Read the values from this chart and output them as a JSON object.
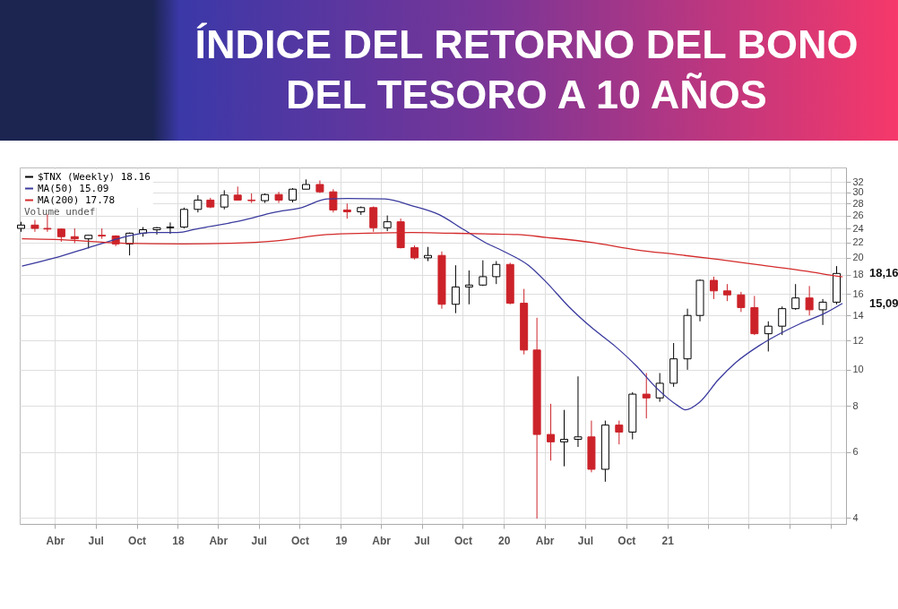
{
  "chart_data": {
    "type": "candlestick",
    "title": "ÍNDICE DEL RETORNO DEL BONO DEL TESORO A 10 AÑOS",
    "xlim": [
      "2017-01-12",
      "2022-02-05"
    ],
    "xticks": [
      {
        "value": "2017-04-01",
        "label": "Abr"
      },
      {
        "value": "2017-07-01",
        "label": "Jul"
      },
      {
        "value": "2017-10-01",
        "label": "Oct"
      },
      {
        "value": "2018-01-01",
        "label": "18"
      },
      {
        "value": "2018-04-01",
        "label": "Abr"
      },
      {
        "value": "2018-07-01",
        "label": "Jul"
      },
      {
        "value": "2018-10-01",
        "label": "Oct"
      },
      {
        "value": "2019-01-01",
        "label": "19"
      },
      {
        "value": "2019-04-01",
        "label": "Abr"
      },
      {
        "value": "2019-07-01",
        "label": "Jul"
      },
      {
        "value": "2019-10-01",
        "label": "Oct"
      },
      {
        "value": "2020-01-01",
        "label": "20"
      },
      {
        "value": "2020-04-01",
        "label": "Abr"
      },
      {
        "value": "2020-07-01",
        "label": "Jul"
      },
      {
        "value": "2020-10-01",
        "label": "Oct"
      },
      {
        "value": "2021-01-01",
        "label": "21"
      },
      {
        "value": "2021-04-01",
        "label": null
      },
      {
        "value": "2021-07-01",
        "label": null
      },
      {
        "value": "2021-10-01",
        "label": null
      },
      {
        "value": "2022-01-01",
        "label": null
      }
    ],
    "ylim": [
      3.85,
      35
    ],
    "yticks": [
      4,
      6,
      8,
      10,
      12,
      14,
      16,
      18,
      20,
      22,
      24,
      26,
      28,
      30,
      32
    ],
    "log": true,
    "grid": true,
    "legend": "top left",
    "series": [
      {
        "name": "$TNX (Weekly) 18.16",
        "color": "#000000",
        "x": [
          "2017-01-15",
          "2017-02-15",
          "2017-03-15",
          "2017-04-15",
          "2017-05-15",
          "2017-06-15",
          "2017-07-15",
          "2017-08-15",
          "2017-09-15",
          "2017-10-15",
          "2017-11-15",
          "2017-12-15",
          "2018-01-15",
          "2018-02-15",
          "2018-03-15",
          "2018-04-15",
          "2018-05-15",
          "2018-06-15",
          "2018-07-15",
          "2018-08-15",
          "2018-09-15",
          "2018-10-15",
          "2018-11-15",
          "2018-12-15",
          "2019-01-15",
          "2019-02-15",
          "2019-03-15",
          "2019-04-15",
          "2019-05-15",
          "2019-06-15",
          "2019-07-15",
          "2019-08-15",
          "2019-09-15",
          "2019-10-15",
          "2019-11-15",
          "2019-12-15",
          "2020-01-15",
          "2020-02-15",
          "2020-03-15",
          "2020-04-15",
          "2020-05-15",
          "2020-06-15",
          "2020-07-15",
          "2020-08-15",
          "2020-09-15",
          "2020-10-15",
          "2020-11-15",
          "2020-12-15",
          "2021-01-15",
          "2021-02-15",
          "2021-03-15",
          "2021-04-15",
          "2021-05-15",
          "2021-06-15",
          "2021-07-15",
          "2021-08-15",
          "2021-09-15",
          "2021-10-15",
          "2021-11-15",
          "2021-12-15",
          "2022-01-15"
        ],
        "ohlc": [
          [
            24.0,
            25.0,
            23.5,
            24.5
          ],
          [
            24.5,
            25.3,
            23.5,
            24.0
          ],
          [
            24.0,
            26.2,
            23.5,
            23.9
          ],
          [
            23.9,
            24.0,
            22.1,
            22.8
          ],
          [
            22.8,
            24.0,
            21.9,
            22.5
          ],
          [
            22.5,
            23.0,
            21.2,
            23.0
          ],
          [
            23.0,
            24.0,
            22.5,
            22.9
          ],
          [
            22.9,
            23.0,
            21.5,
            21.8
          ],
          [
            21.8,
            23.4,
            20.3,
            23.3
          ],
          [
            23.3,
            24.2,
            22.8,
            23.8
          ],
          [
            23.8,
            24.2,
            23.1,
            24.1
          ],
          [
            24.1,
            24.9,
            23.2,
            24.2
          ],
          [
            24.2,
            27.3,
            24.0,
            27.0
          ],
          [
            27.0,
            29.5,
            26.5,
            28.6
          ],
          [
            28.6,
            29.0,
            27.2,
            27.4
          ],
          [
            27.4,
            30.4,
            27.0,
            29.5
          ],
          [
            29.5,
            31.1,
            28.6,
            28.6
          ],
          [
            28.6,
            29.8,
            28.1,
            28.5
          ],
          [
            28.5,
            29.8,
            28.1,
            29.6
          ],
          [
            29.6,
            30.1,
            28.1,
            28.6
          ],
          [
            28.6,
            30.8,
            28.2,
            30.6
          ],
          [
            30.6,
            32.5,
            30.6,
            31.5
          ],
          [
            31.5,
            32.3,
            29.9,
            30.1
          ],
          [
            30.1,
            30.6,
            26.5,
            26.9
          ],
          [
            26.9,
            28.0,
            25.5,
            26.6
          ],
          [
            26.6,
            27.5,
            26.1,
            27.3
          ],
          [
            27.3,
            27.5,
            23.5,
            24.1
          ],
          [
            24.1,
            26.0,
            23.6,
            25.0
          ],
          [
            25.0,
            25.5,
            21.2,
            21.3
          ],
          [
            21.3,
            21.6,
            19.8,
            20.0
          ],
          [
            20.0,
            21.4,
            19.6,
            20.3
          ],
          [
            20.3,
            20.8,
            14.6,
            15.0
          ],
          [
            15.0,
            19.1,
            14.2,
            16.7
          ],
          [
            16.7,
            18.5,
            15.0,
            16.9
          ],
          [
            16.9,
            19.7,
            16.8,
            17.8
          ],
          [
            17.8,
            19.6,
            17.0,
            19.2
          ],
          [
            19.2,
            19.4,
            15.0,
            15.1
          ],
          [
            15.1,
            16.5,
            11.0,
            11.3
          ],
          [
            11.3,
            13.8,
            3.98,
            6.7
          ],
          [
            6.7,
            8.1,
            5.7,
            6.4
          ],
          [
            6.4,
            7.8,
            5.5,
            6.5
          ],
          [
            6.5,
            9.6,
            6.2,
            6.6
          ],
          [
            6.6,
            7.3,
            5.3,
            5.4
          ],
          [
            5.4,
            7.3,
            5.0,
            7.1
          ],
          [
            7.1,
            7.3,
            6.3,
            6.8
          ],
          [
            6.8,
            8.7,
            6.5,
            8.6
          ],
          [
            8.6,
            9.8,
            7.4,
            8.4
          ],
          [
            8.4,
            9.8,
            8.2,
            9.2
          ],
          [
            9.2,
            11.8,
            9.0,
            10.7
          ],
          [
            10.7,
            14.6,
            10.0,
            14.0
          ],
          [
            14.0,
            17.5,
            13.5,
            17.4
          ],
          [
            17.4,
            17.8,
            15.5,
            16.3
          ],
          [
            16.3,
            17.0,
            15.3,
            15.9
          ],
          [
            15.9,
            16.2,
            14.3,
            14.7
          ],
          [
            14.7,
            15.8,
            12.4,
            12.5
          ],
          [
            12.5,
            13.5,
            11.2,
            13.1
          ],
          [
            13.1,
            14.8,
            12.4,
            14.6
          ],
          [
            14.6,
            17.0,
            14.5,
            15.6
          ],
          [
            15.6,
            16.8,
            14.0,
            14.5
          ],
          [
            14.5,
            15.5,
            13.2,
            15.2
          ],
          [
            15.2,
            19.0,
            15.0,
            18.16
          ]
        ],
        "colors": [
          "#000000",
          "#cc2229",
          "#cc2229",
          "#cc2229",
          "#cc2229",
          "#000000",
          "#cc2229",
          "#cc2229",
          "#000000",
          "#000000",
          "#000000",
          "#000000",
          "#000000",
          "#000000",
          "#cc2229",
          "#000000",
          "#cc2229",
          "#cc2229",
          "#000000",
          "#cc2229",
          "#000000",
          "#000000",
          "#cc2229",
          "#cc2229",
          "#cc2229",
          "#000000",
          "#cc2229",
          "#000000",
          "#cc2229",
          "#cc2229",
          "#000000",
          "#cc2229",
          "#000000",
          "#000000",
          "#000000",
          "#000000",
          "#cc2229",
          "#cc2229",
          "#cc2229",
          "#cc2229",
          "#000000",
          "#000000",
          "#cc2229",
          "#000000",
          "#cc2229",
          "#000000",
          "#cc2229",
          "#000000",
          "#000000",
          "#000000",
          "#000000",
          "#cc2229",
          "#cc2229",
          "#cc2229",
          "#cc2229",
          "#000000",
          "#000000",
          "#000000",
          "#cc2229",
          "#000000",
          "#000000"
        ]
      },
      {
        "name": "MA(50) 15.09",
        "type": "line",
        "color": "#3a3a9e",
        "x": [
          "2017-01-17",
          "2017-04-01",
          "2017-07-01",
          "2017-09-20",
          "2017-11-01",
          "2018-01-01",
          "2018-02-10",
          "2018-05-25",
          "2018-08-05",
          "2018-10-05",
          "2018-12-01",
          "2019-01-15",
          "2019-04-10",
          "2019-06-10",
          "2019-08-10",
          "2019-10-01",
          "2019-11-20",
          "2020-01-05",
          "2020-02-25",
          "2020-04-05",
          "2020-05-25",
          "2020-07-15",
          "2020-09-05",
          "2020-10-25",
          "2020-12-05",
          "2021-01-25",
          "2021-02-10",
          "2021-03-15",
          "2021-04-25",
          "2021-06-05",
          "2021-07-25",
          "2021-09-15",
          "2021-10-25",
          "2021-12-20",
          "2022-01-28"
        ],
        "values": [
          19.0,
          20.0,
          21.6,
          23.0,
          23.4,
          23.4,
          23.9,
          25.2,
          26.5,
          27.3,
          28.8,
          28.9,
          28.8,
          27.6,
          26.1,
          23.9,
          22.0,
          20.7,
          19.1,
          17.2,
          14.8,
          13.0,
          11.6,
          10.2,
          9.0,
          8.0,
          7.8,
          8.2,
          9.4,
          10.5,
          11.6,
          12.6,
          13.3,
          14.2,
          15.09
        ]
      },
      {
        "name": "MA(200) 17.78",
        "type": "line",
        "color": "#d42a2a",
        "x": [
          "2017-01-17",
          "2017-04-01",
          "2017-09-01",
          "2018-01-15",
          "2018-05-01",
          "2018-08-05",
          "2018-12-01",
          "2019-03-01",
          "2019-06-10",
          "2019-09-01",
          "2019-11-20",
          "2020-02-01",
          "2020-04-05",
          "2020-07-15",
          "2020-10-25",
          "2021-01-25",
          "2021-04-25",
          "2021-08-01",
          "2021-11-10",
          "2022-01-10",
          "2022-01-28"
        ],
        "values": [
          22.5,
          22.4,
          21.9,
          21.8,
          21.9,
          22.2,
          23.1,
          23.3,
          23.4,
          23.3,
          23.2,
          23.1,
          22.7,
          22.0,
          21.0,
          20.4,
          19.8,
          19.1,
          18.4,
          17.9,
          17.78
        ]
      }
    ],
    "annotations": [
      "Volume undef",
      {
        "text": "18,16",
        "x": "2022-01-28",
        "y": 18.16
      },
      {
        "text": "15,09",
        "x": "2022-01-28",
        "y": 15.09
      }
    ]
  }
}
